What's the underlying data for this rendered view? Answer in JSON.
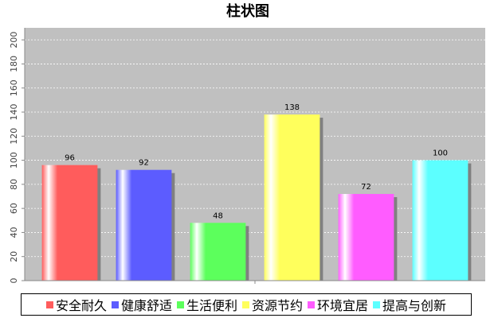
{
  "chart_data": {
    "type": "bar",
    "title": "柱状图",
    "categories": [
      "安全耐久",
      "健康舒适",
      "生活便利",
      "资源节约",
      "环境宜居",
      "提高与创新"
    ],
    "values": [
      96,
      92,
      48,
      138,
      72,
      100
    ],
    "colors": [
      "#ff5c5c",
      "#5c5cff",
      "#5cff5c",
      "#ffff5c",
      "#ff5cff",
      "#5cffff"
    ],
    "ylim": [
      0,
      210
    ],
    "yticks": [
      0,
      20,
      40,
      60,
      80,
      100,
      120,
      140,
      160,
      180,
      200
    ],
    "grid": true,
    "legend_position": "bottom",
    "plot_background": "#c0c0c0"
  }
}
